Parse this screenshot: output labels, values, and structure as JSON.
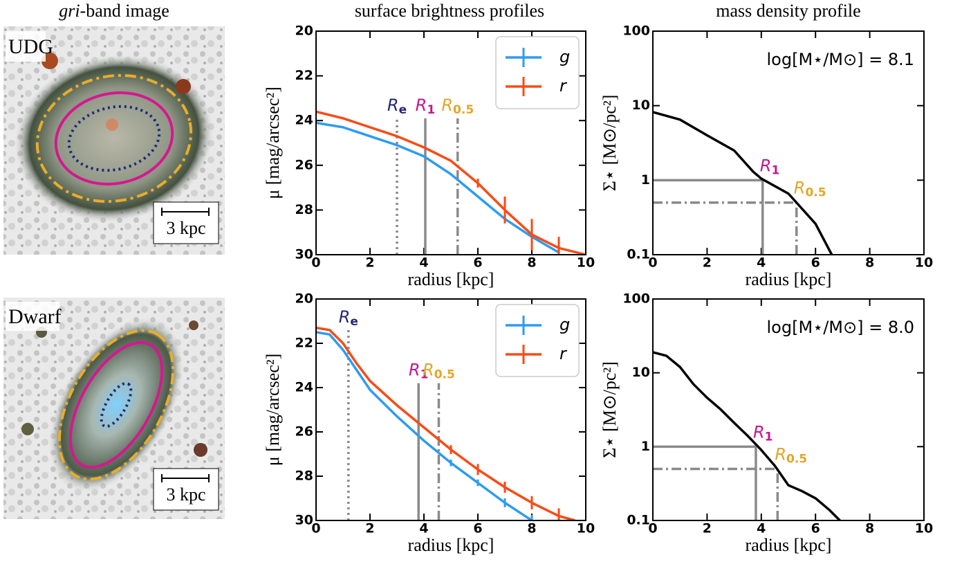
{
  "headers": {
    "image_italic": "gri",
    "image": "-band image",
    "profiles": "surface brightness profiles",
    "mass": "mass density profile"
  },
  "images": [
    {
      "label": "UDG",
      "scale_bar": "3 kpc"
    },
    {
      "label": "Dwarf",
      "scale_bar": "3 kpc"
    }
  ],
  "chart_data": [
    {
      "type": "line",
      "x_label": "radius [kpc]",
      "y_label": "μ [mag/arcsec²]",
      "xlim": [
        0,
        10
      ],
      "ylim": [
        30,
        20
      ],
      "xticks": [
        0,
        2,
        4,
        6,
        8,
        10
      ],
      "yticks": [
        20,
        22,
        24,
        26,
        28,
        30
      ],
      "legend": "upper right",
      "marker_lines": "vertical",
      "x": [
        0,
        1,
        2,
        3,
        4,
        5,
        6,
        7,
        8,
        9,
        10
      ],
      "series": [
        {
          "name": "g",
          "color": "#2b9cf2",
          "values": [
            24.1,
            24.3,
            24.7,
            25.1,
            25.6,
            26.4,
            27.4,
            28.4,
            29.2,
            29.9,
            null
          ]
        },
        {
          "name": "r",
          "color": "#fb4a14",
          "values": [
            23.6,
            23.9,
            24.3,
            24.7,
            25.2,
            25.8,
            26.8,
            28.0,
            29.1,
            29.7,
            30.0
          ],
          "errors": [
            null,
            null,
            null,
            null,
            null,
            null,
            0.2,
            0.6,
            0.7,
            0.5,
            null
          ]
        }
      ],
      "markers": [
        {
          "name": "R",
          "sub": "e",
          "x": 3.0,
          "y": 23.9,
          "color": "#262673",
          "style": "dotted"
        },
        {
          "name": "R",
          "sub": "1",
          "x": 4.05,
          "y": 23.9,
          "color": "#c8168a",
          "style": "solid"
        },
        {
          "name": "R",
          "sub": "0.5",
          "x": 5.25,
          "y": 23.9,
          "color": "#e3a628",
          "style": "dashdot"
        }
      ]
    },
    {
      "type": "line",
      "x_label": "radius [kpc]",
      "y_label": "Σ⋆ [M⊙/pc²]",
      "y_scale": "log",
      "xlim": [
        0,
        10
      ],
      "ylim": [
        0.1,
        100
      ],
      "xticks": [
        0,
        2,
        4,
        6,
        8,
        10
      ],
      "yticks": [
        0.1,
        1,
        10,
        100
      ],
      "annotation": "log[M⋆/M⊙] = 8.1",
      "marker_lines": "corner",
      "x": [
        0,
        1,
        2,
        3,
        3.7,
        4,
        5,
        5.3,
        6,
        6.6
      ],
      "series": [
        {
          "color": "#000000",
          "values": [
            8.2,
            6.5,
            4.0,
            2.5,
            1.3,
            1.05,
            0.66,
            0.5,
            0.26,
            0.1
          ]
        }
      ],
      "markers": [
        {
          "name": "R",
          "sub": "1",
          "x": 4.05,
          "y": 1.0,
          "color": "#c8168a",
          "style": "solid"
        },
        {
          "name": "R",
          "sub": "0.5",
          "x": 5.3,
          "y": 0.5,
          "color": "#e3a628",
          "style": "dashdot"
        }
      ]
    },
    {
      "type": "line",
      "x_label": "radius [kpc]",
      "y_label": "μ [mag/arcsec²]",
      "xlim": [
        0,
        10
      ],
      "ylim": [
        30,
        20
      ],
      "xticks": [
        0,
        2,
        4,
        6,
        8,
        10
      ],
      "yticks": [
        20,
        22,
        24,
        26,
        28,
        30
      ],
      "legend": "upper right",
      "marker_lines": "vertical",
      "x": [
        0,
        0.5,
        1,
        1.5,
        2,
        3,
        4,
        5,
        6,
        7,
        8,
        9,
        9.6
      ],
      "series": [
        {
          "name": "g",
          "color": "#2b9cf2",
          "values": [
            21.5,
            21.6,
            22.3,
            23.2,
            24.1,
            25.3,
            26.4,
            27.4,
            28.3,
            29.2,
            30.0,
            null,
            null
          ],
          "errors": [
            null,
            null,
            null,
            null,
            null,
            null,
            null,
            0.15,
            0.15,
            0.2,
            0.25,
            null,
            null
          ]
        },
        {
          "name": "r",
          "color": "#fb4a14",
          "values": [
            21.3,
            21.4,
            22.0,
            22.9,
            23.7,
            24.8,
            25.8,
            26.8,
            27.7,
            28.5,
            29.2,
            29.8,
            30.0
          ],
          "errors": [
            null,
            null,
            null,
            null,
            null,
            null,
            null,
            0.2,
            0.25,
            0.25,
            0.3,
            0.35,
            null
          ]
        }
      ],
      "markers": [
        {
          "name": "R",
          "sub": "e",
          "x": 1.2,
          "y": 21.4,
          "color": "#262673",
          "style": "dotted"
        },
        {
          "name": "R",
          "sub": "1",
          "x": 3.8,
          "y": 23.8,
          "color": "#c8168a",
          "style": "solid"
        },
        {
          "name": "R",
          "sub": "0.5",
          "x": 4.55,
          "y": 23.8,
          "color": "#e3a628",
          "style": "dashdot"
        }
      ]
    },
    {
      "type": "line",
      "x_label": "radius [kpc]",
      "y_label": "Σ⋆ [M⊙/pc²]",
      "y_scale": "log",
      "xlim": [
        0,
        10
      ],
      "ylim": [
        0.1,
        100
      ],
      "xticks": [
        0,
        2,
        4,
        6,
        8,
        10
      ],
      "yticks": [
        0.1,
        1,
        10,
        100
      ],
      "annotation": "log[M⋆/M⊙] = 8.0",
      "marker_lines": "corner",
      "x": [
        0,
        0.5,
        1,
        1.5,
        2,
        2.5,
        3,
        3.5,
        4,
        4.5,
        5,
        5.5,
        6,
        6.5,
        6.9
      ],
      "series": [
        {
          "color": "#000000",
          "values": [
            19,
            17,
            12,
            7,
            4.6,
            3.2,
            2.1,
            1.4,
            0.9,
            0.55,
            0.3,
            0.25,
            0.2,
            0.14,
            0.1
          ]
        }
      ],
      "markers": [
        {
          "name": "R",
          "sub": "1",
          "x": 3.8,
          "y": 1.0,
          "color": "#c8168a",
          "style": "solid"
        },
        {
          "name": "R",
          "sub": "0.5",
          "x": 4.6,
          "y": 0.5,
          "color": "#e3a628",
          "style": "dashdot"
        }
      ]
    }
  ]
}
